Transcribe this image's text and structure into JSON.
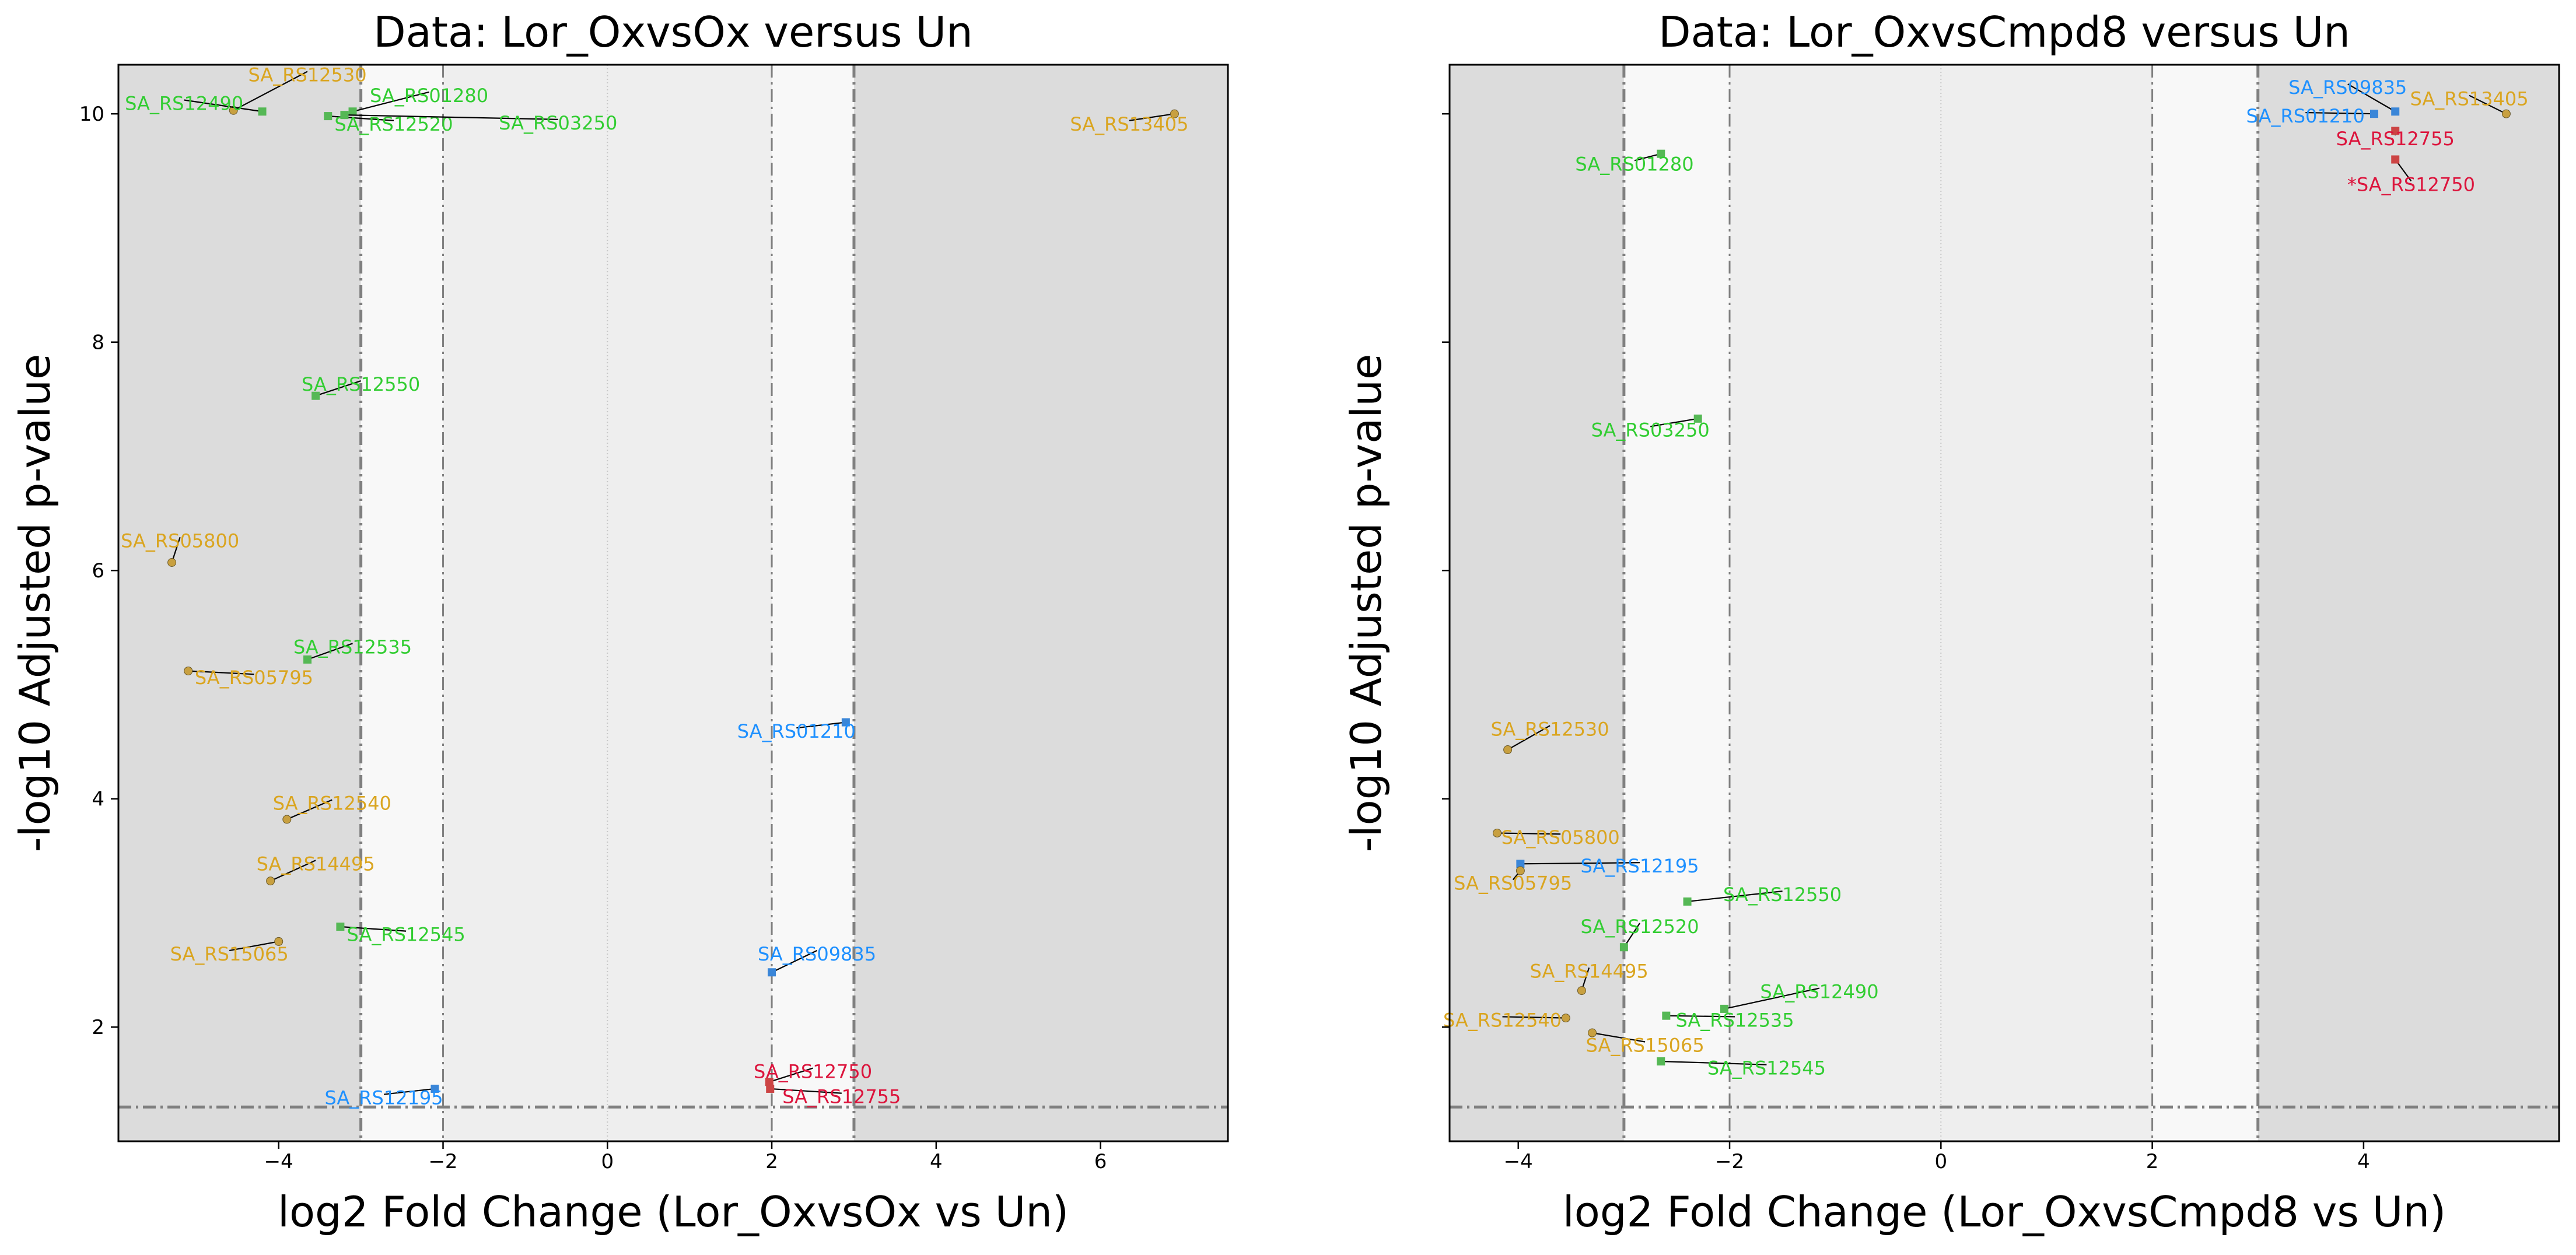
{
  "chart_data": [
    {
      "type": "scatter",
      "title": "Data: Lor_OxvsOx versus Un",
      "xlabel": "log2 Fold Change (Lor_OxvsOx vs Un)",
      "ylabel": "-log10 Adjusted p-value",
      "xlim": [
        -5.95,
        7.55
      ],
      "ylim": [
        1.0,
        10.43
      ],
      "xticks": [
        -4,
        -2,
        0,
        2,
        4,
        6
      ],
      "yticks": [
        2,
        4,
        6,
        8,
        10
      ],
      "show_yticklabels": true,
      "fc_thresholds": [
        -3,
        -2,
        2,
        3
      ],
      "p_threshold": 1.3,
      "points": [
        {
          "label": "SA_RS12530",
          "x": -4.55,
          "y": 10.03,
          "lx": -3.65,
          "ly": 10.33,
          "color": "#DAA520"
        },
        {
          "label": "SA_RS12490",
          "x": -4.2,
          "y": 10.02,
          "lx": -5.15,
          "ly": 10.08,
          "color": "#32CD32"
        },
        {
          "label": "SA_RS01280",
          "x": -3.1,
          "y": 10.02,
          "lx": -2.17,
          "ly": 10.15,
          "color": "#32CD32"
        },
        {
          "label": "SA_RS12520",
          "x": -3.4,
          "y": 9.98,
          "lx": -2.6,
          "ly": 9.9,
          "color": "#32CD32"
        },
        {
          "label": "SA_RS03250",
          "x": -3.2,
          "y": 9.99,
          "lx": -0.6,
          "ly": 9.91,
          "color": "#32CD32"
        },
        {
          "label": "SA_RS13405",
          "x": 6.9,
          "y": 10.0,
          "lx": 6.35,
          "ly": 9.9,
          "color": "#DAA520"
        },
        {
          "label": "SA_RS12550",
          "x": -3.55,
          "y": 7.53,
          "lx": -3.0,
          "ly": 7.62,
          "color": "#32CD32"
        },
        {
          "label": "SA_RS05800",
          "x": -5.3,
          "y": 6.07,
          "lx": -5.2,
          "ly": 6.25,
          "color": "#DAA520"
        },
        {
          "label": "SA_RS12535",
          "x": -3.65,
          "y": 5.22,
          "lx": -3.1,
          "ly": 5.32,
          "color": "#32CD32"
        },
        {
          "label": "SA_RS05795",
          "x": -5.1,
          "y": 5.12,
          "lx": -4.3,
          "ly": 5.05,
          "color": "#DAA520"
        },
        {
          "label": "SA_RS01210",
          "x": 2.9,
          "y": 4.67,
          "lx": 2.3,
          "ly": 4.58,
          "color": "#1E90FF"
        },
        {
          "label": "SA_RS12540",
          "x": -3.9,
          "y": 3.82,
          "lx": -3.35,
          "ly": 3.95,
          "color": "#DAA520"
        },
        {
          "label": "SA_RS14495",
          "x": -4.1,
          "y": 3.28,
          "lx": -3.55,
          "ly": 3.42,
          "color": "#DAA520"
        },
        {
          "label": "SA_RS12545",
          "x": -3.25,
          "y": 2.88,
          "lx": -2.45,
          "ly": 2.8,
          "color": "#32CD32"
        },
        {
          "label": "SA_RS15065",
          "x": -4.0,
          "y": 2.75,
          "lx": -4.6,
          "ly": 2.63,
          "color": "#DAA520"
        },
        {
          "label": "SA_RS09835",
          "x": 2.0,
          "y": 2.48,
          "lx": 2.55,
          "ly": 2.63,
          "color": "#1E90FF"
        },
        {
          "label": "SA_RS12750",
          "x": 1.97,
          "y": 1.52,
          "lx": 2.5,
          "ly": 1.6,
          "color": "#DC143C"
        },
        {
          "label": "SA_RS12755",
          "x": 1.98,
          "y": 1.46,
          "lx": 2.85,
          "ly": 1.38,
          "color": "#DC143C"
        },
        {
          "label": "SA_RS12195",
          "x": -2.1,
          "y": 1.46,
          "lx": -2.72,
          "ly": 1.37,
          "color": "#1E90FF"
        }
      ]
    },
    {
      "type": "scatter",
      "title": "Data: Lor_OxvsCmpd8 versus Un",
      "xlabel": "log2 Fold Change (Lor_OxvsCmpd8 vs Un)",
      "ylabel": "-log10 Adjusted p-value",
      "xlim": [
        -4.65,
        5.85
      ],
      "ylim": [
        1.0,
        10.43
      ],
      "xticks": [
        -4,
        -2,
        0,
        2,
        4
      ],
      "yticks": [
        2,
        4,
        6,
        8,
        10
      ],
      "show_yticklabels": false,
      "fc_thresholds": [
        -3,
        -2,
        2,
        3
      ],
      "p_threshold": 1.3,
      "points": [
        {
          "label": "SA_RS09835",
          "x": 4.3,
          "y": 10.02,
          "lx": 3.85,
          "ly": 10.22,
          "color": "#1E90FF"
        },
        {
          "label": "SA_RS13405",
          "x": 5.35,
          "y": 10.0,
          "lx": 5.0,
          "ly": 10.12,
          "color": "#DAA520"
        },
        {
          "label": "SA_RS01210",
          "x": 4.1,
          "y": 10.0,
          "lx": 3.45,
          "ly": 9.97,
          "color": "#1E90FF"
        },
        {
          "label": "SA_RS12755",
          "x": 4.3,
          "y": 9.85,
          "lx": 4.3,
          "ly": 9.77,
          "color": "#DC143C"
        },
        {
          "label": "*SA_RS12750",
          "x": 4.3,
          "y": 9.6,
          "lx": 4.45,
          "ly": 9.37,
          "color": "#DC143C"
        },
        {
          "label": "SA_RS01280",
          "x": -2.65,
          "y": 9.65,
          "lx": -2.9,
          "ly": 9.55,
          "color": "#32CD32"
        },
        {
          "label": "SA_RS03250",
          "x": -2.3,
          "y": 7.33,
          "lx": -2.75,
          "ly": 7.22,
          "color": "#32CD32"
        },
        {
          "label": "SA_RS12530",
          "x": -4.1,
          "y": 4.43,
          "lx": -3.7,
          "ly": 4.6,
          "color": "#DAA520"
        },
        {
          "label": "SA_RS05800",
          "x": -4.2,
          "y": 3.7,
          "lx": -3.6,
          "ly": 3.65,
          "color": "#DAA520"
        },
        {
          "label": "SA_RS12195",
          "x": -3.98,
          "y": 3.43,
          "lx": -2.85,
          "ly": 3.4,
          "color": "#1E90FF"
        },
        {
          "label": "SA_RS05795",
          "x": -3.98,
          "y": 3.37,
          "lx": -4.05,
          "ly": 3.25,
          "color": "#DAA520"
        },
        {
          "label": "SA_RS12550",
          "x": -2.4,
          "y": 3.1,
          "lx": -1.5,
          "ly": 3.15,
          "color": "#32CD32"
        },
        {
          "label": "SA_RS12520",
          "x": -3.0,
          "y": 2.7,
          "lx": -2.85,
          "ly": 2.87,
          "color": "#32CD32"
        },
        {
          "label": "SA_RS14495",
          "x": -3.4,
          "y": 2.32,
          "lx": -3.33,
          "ly": 2.48,
          "color": "#DAA520"
        },
        {
          "label": "SA_RS12490",
          "x": -2.05,
          "y": 2.16,
          "lx": -1.15,
          "ly": 2.3,
          "color": "#32CD32"
        },
        {
          "label": "SA_RS12535",
          "x": -2.6,
          "y": 2.1,
          "lx": -1.95,
          "ly": 2.05,
          "color": "#32CD32"
        },
        {
          "label": "SA_RS12540",
          "x": -3.55,
          "y": 2.08,
          "lx": -4.15,
          "ly": 2.05,
          "color": "#DAA520"
        },
        {
          "label": "SA_RS15065",
          "x": -3.3,
          "y": 1.95,
          "lx": -2.8,
          "ly": 1.83,
          "color": "#DAA520"
        },
        {
          "label": "SA_RS12545",
          "x": -2.65,
          "y": 1.7,
          "lx": -1.65,
          "ly": 1.63,
          "color": "#32CD32"
        }
      ]
    }
  ]
}
